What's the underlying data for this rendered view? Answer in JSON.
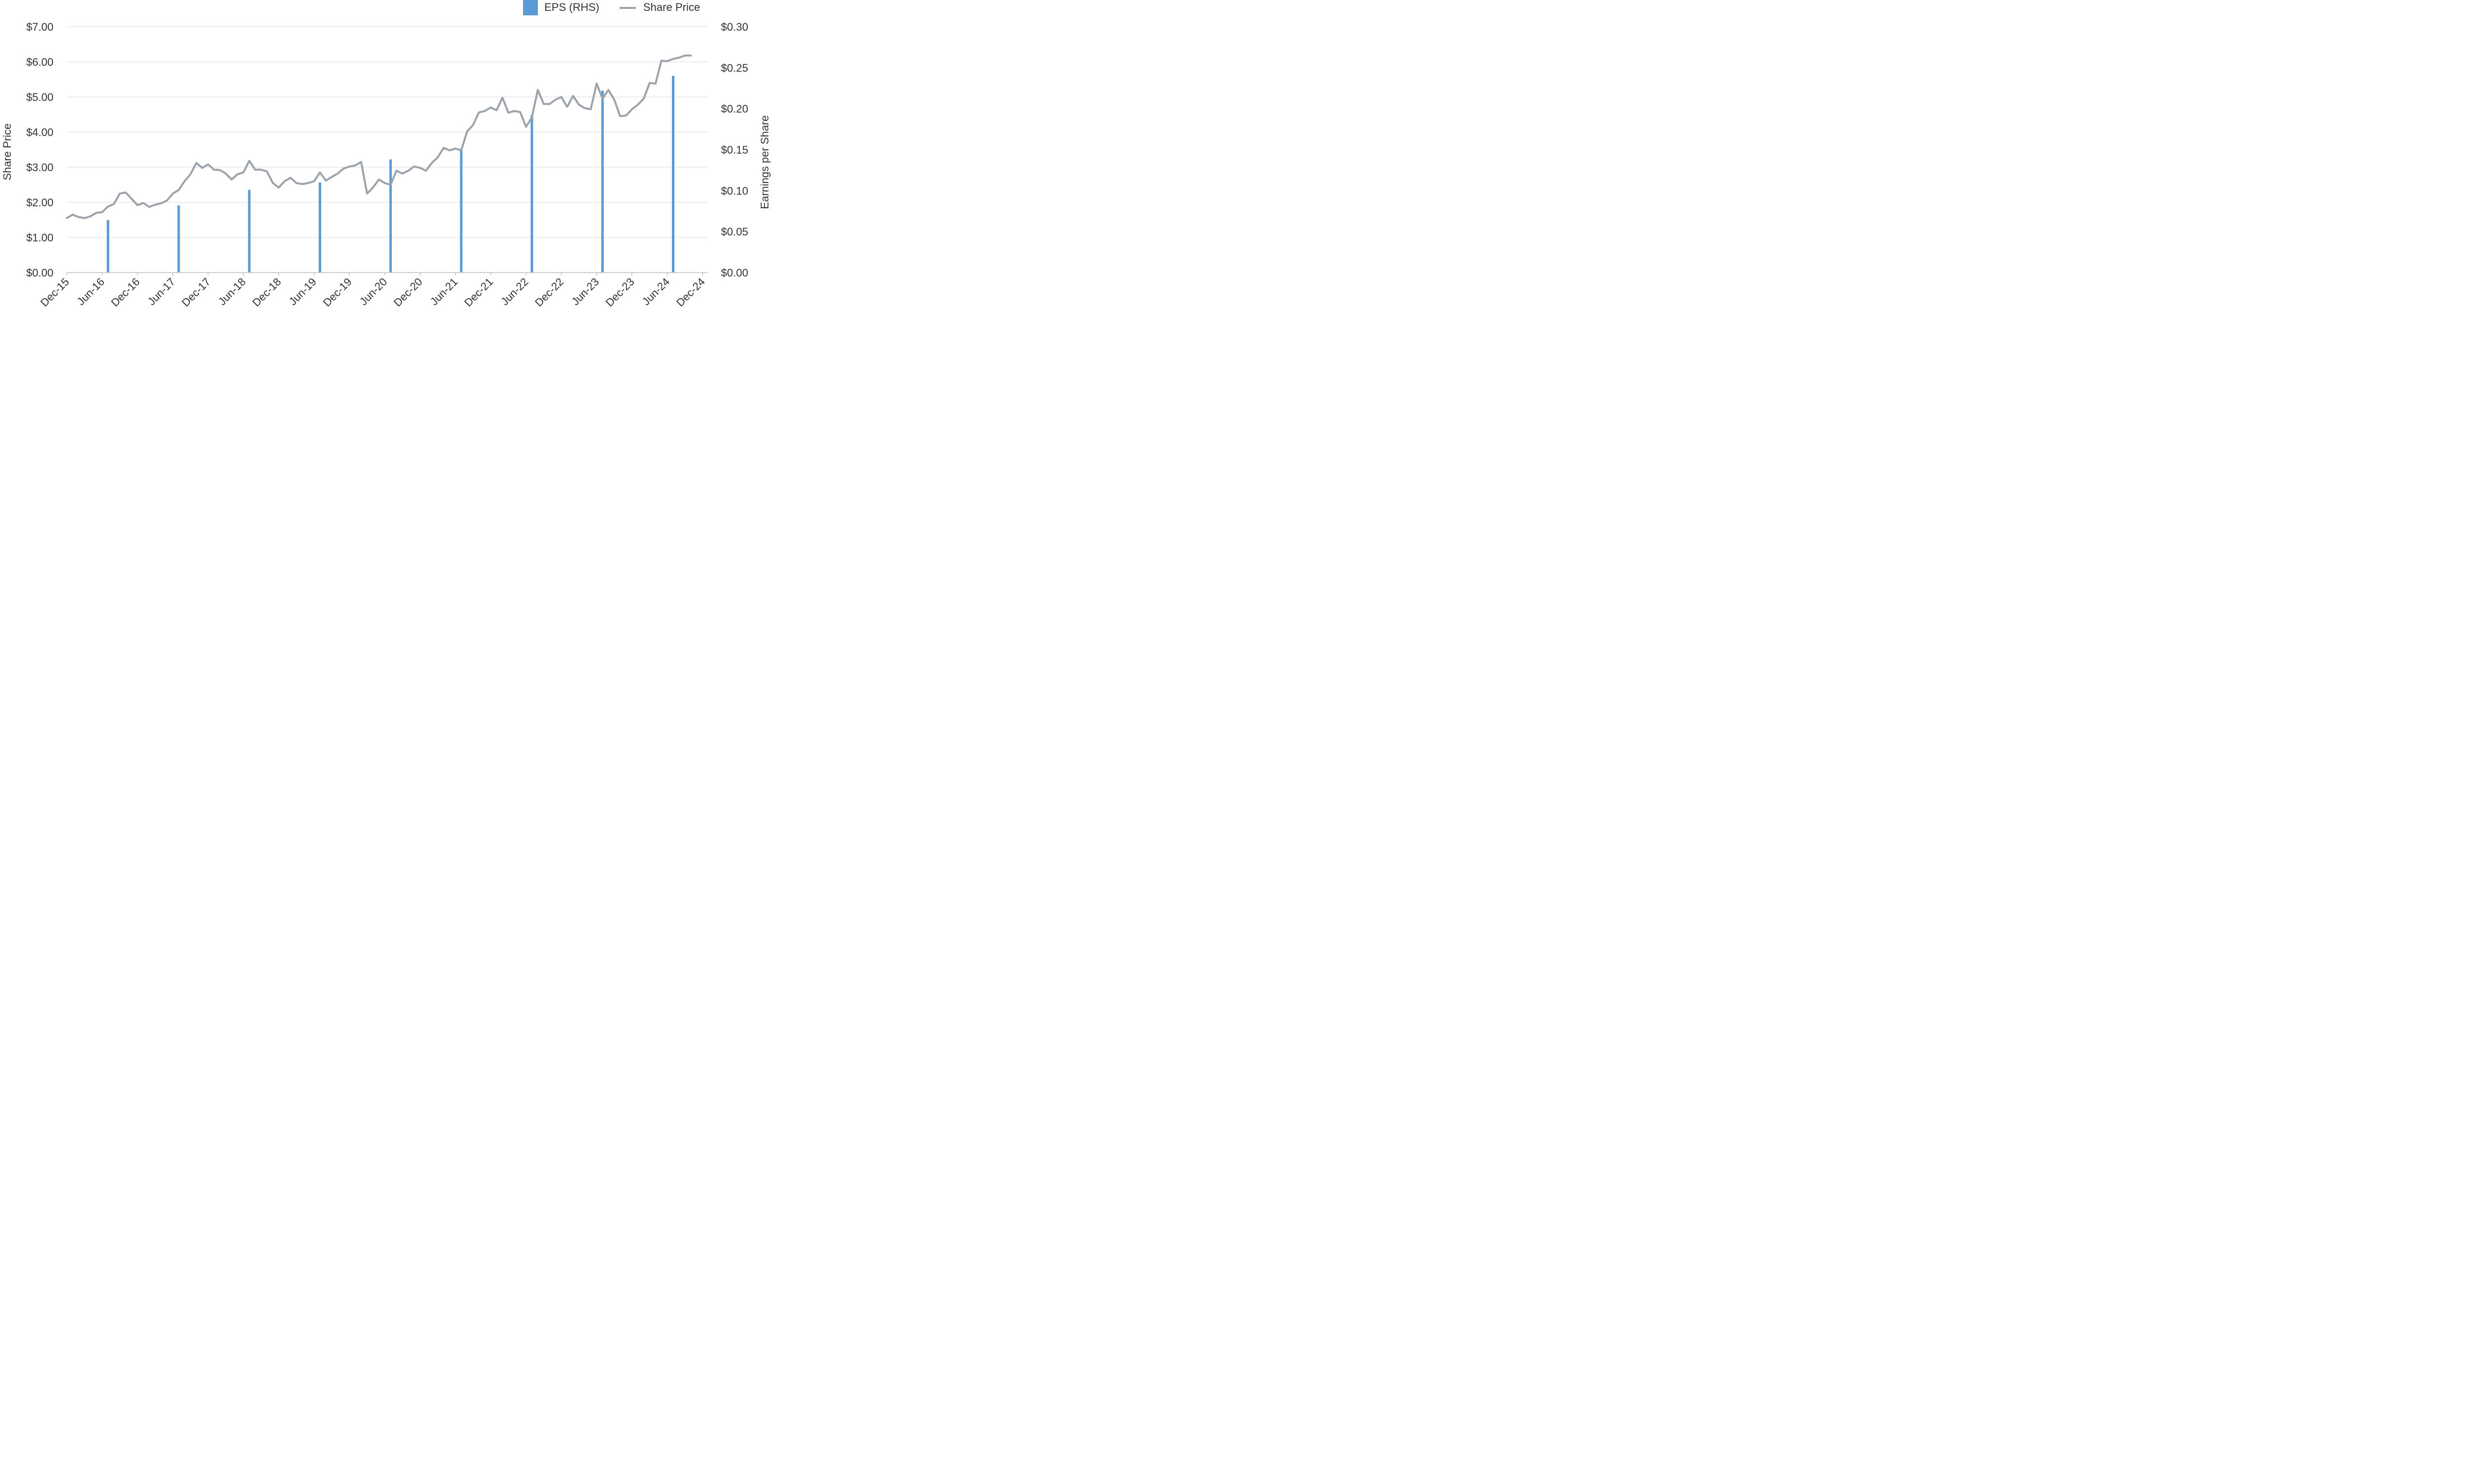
{
  "chart_data": {
    "type": "bar",
    "x_tick_labels": [
      "Dec-15",
      "Jun-16",
      "Dec-16",
      "Jun-17",
      "Dec-17",
      "Jun-18",
      "Dec-18",
      "Jun-19",
      "Dec-19",
      "Jun-20",
      "Dec-20",
      "Jun-21",
      "Dec-21",
      "Jun-22",
      "Dec-22",
      "Jun-23",
      "Dec-23",
      "Jun-24",
      "Dec-24"
    ],
    "ylabel_left": "Share Price",
    "ylabel_right": "Earnings per Share",
    "ylim_left": [
      0,
      7
    ],
    "ylim_right": [
      0,
      0.3
    ],
    "yticks_left": [
      "$0.00",
      "$1.00",
      "$2.00",
      "$3.00",
      "$4.00",
      "$5.00",
      "$6.00",
      "$7.00"
    ],
    "yticks_right": [
      "$0.00",
      "$0.05",
      "$0.10",
      "$0.15",
      "$0.20",
      "$0.25",
      "$0.30"
    ],
    "grid": true,
    "legend": {
      "position": "top-right"
    },
    "series": [
      {
        "name": "EPS (RHS)",
        "kind": "bar",
        "axis": "right",
        "color": "#5b9bd5",
        "x": [
          "Jun-16",
          "Jun-17",
          "Jun-18",
          "Jun-19",
          "Jun-20",
          "Jun-21",
          "Jun-22",
          "Jun-23",
          "Jun-24"
        ],
        "values": [
          0.064,
          0.082,
          0.101,
          0.11,
          0.138,
          0.151,
          0.192,
          0.222,
          0.24
        ]
      },
      {
        "name": "Share Price",
        "kind": "line",
        "axis": "left",
        "color": "#9ca3ab",
        "x_start": "Dec-15",
        "frequency": "monthly",
        "values": [
          1.55,
          1.65,
          1.58,
          1.55,
          1.6,
          1.7,
          1.72,
          1.88,
          1.95,
          2.25,
          2.28,
          2.1,
          1.92,
          1.98,
          1.87,
          1.93,
          1.97,
          2.05,
          2.25,
          2.35,
          2.6,
          2.8,
          3.12,
          2.98,
          3.08,
          2.93,
          2.92,
          2.82,
          2.65,
          2.8,
          2.85,
          3.18,
          2.93,
          2.93,
          2.88,
          2.55,
          2.42,
          2.6,
          2.7,
          2.55,
          2.52,
          2.55,
          2.6,
          2.85,
          2.62,
          2.72,
          2.82,
          2.96,
          3.02,
          3.05,
          3.15,
          2.25,
          2.42,
          2.65,
          2.55,
          2.5,
          2.9,
          2.82,
          2.9,
          3.02,
          2.98,
          2.9,
          3.12,
          3.28,
          3.55,
          3.48,
          3.53,
          3.48,
          4.02,
          4.2,
          4.56,
          4.6,
          4.7,
          4.62,
          4.98,
          4.55,
          4.6,
          4.57,
          4.15,
          4.42,
          5.2,
          4.8,
          4.8,
          4.92,
          5.0,
          4.72,
          5.03,
          4.78,
          4.68,
          4.65,
          5.38,
          4.95,
          5.2,
          4.92,
          4.45,
          4.47,
          4.65,
          4.78,
          4.95,
          5.4,
          5.38,
          6.03,
          6.02,
          6.08,
          6.12,
          6.18,
          6.18
        ]
      }
    ]
  }
}
